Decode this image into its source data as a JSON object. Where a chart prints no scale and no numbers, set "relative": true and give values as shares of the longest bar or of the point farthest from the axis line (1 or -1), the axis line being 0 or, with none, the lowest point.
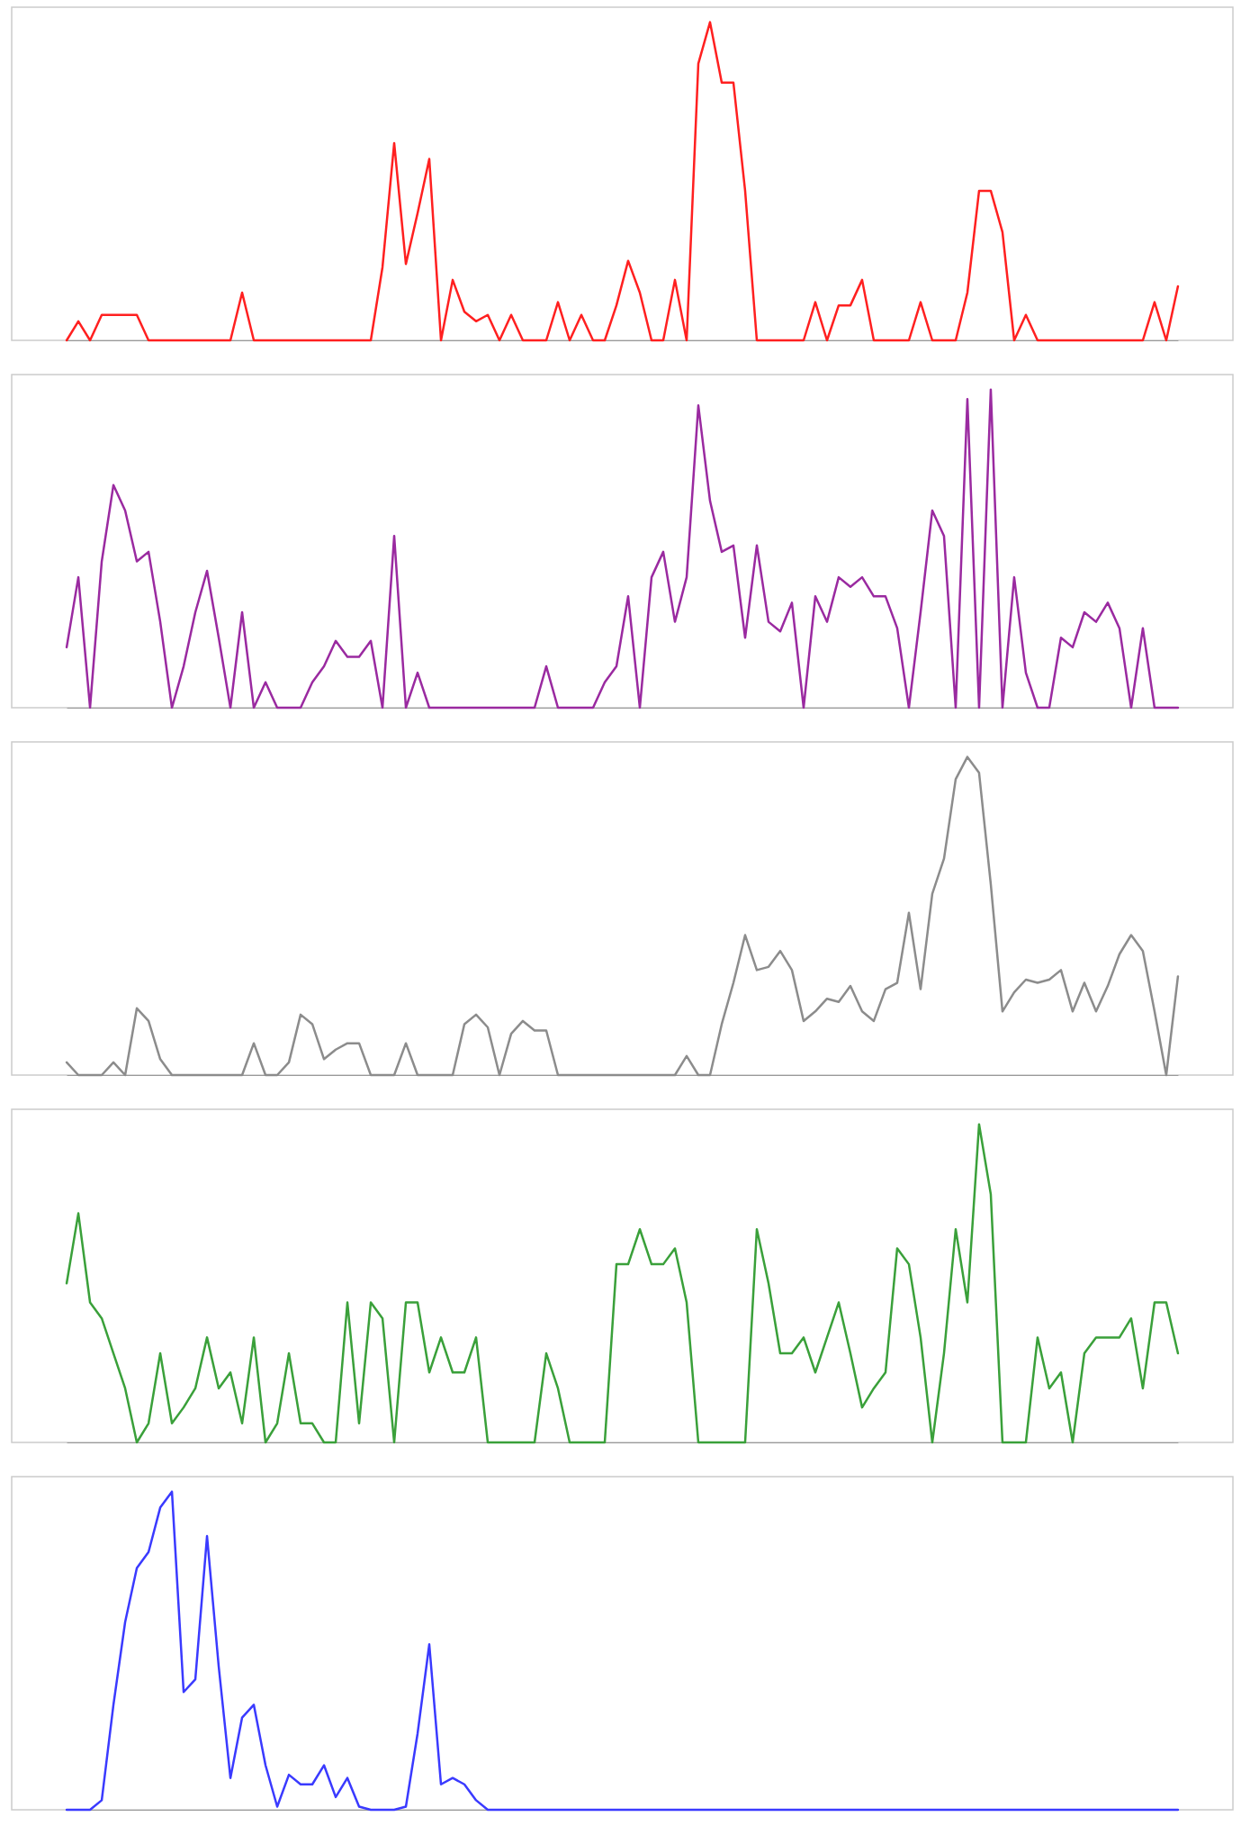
{
  "chart_data": [
    {
      "type": "line",
      "relative": true,
      "categories": [
        null,
        null,
        null,
        null,
        null,
        null,
        null,
        null,
        null,
        null,
        null,
        null,
        null,
        null,
        null,
        null,
        null,
        null,
        null,
        null,
        null,
        null,
        null,
        null,
        null,
        null,
        null,
        null,
        null,
        null,
        null,
        null,
        null,
        null,
        null,
        null,
        null,
        null,
        null,
        null,
        null,
        null,
        null,
        null,
        null,
        null,
        null,
        null,
        null,
        null,
        null,
        null,
        null,
        null,
        null,
        null,
        null,
        null,
        null,
        null,
        null,
        null,
        null,
        null,
        null,
        null,
        null,
        null,
        null,
        null,
        null,
        null,
        null,
        null,
        null,
        null,
        null,
        null,
        null,
        null,
        null,
        null,
        null,
        null,
        null,
        null,
        null,
        null,
        null,
        null,
        null,
        null,
        null,
        null,
        null,
        null
      ],
      "series": [
        {
          "color": "#ff2020",
          "values": [
            0,
            0.06,
            0,
            0.08,
            0.08,
            0.08,
            0.08,
            0,
            0,
            0,
            0,
            0,
            0,
            0,
            0,
            0.15,
            0,
            0,
            0,
            0,
            0,
            0,
            0,
            0,
            0,
            0,
            0,
            0.23,
            0.62,
            0.24,
            0.4,
            0.57,
            0,
            0.19,
            0.09,
            0.06,
            0.08,
            0,
            0.08,
            0,
            0,
            0,
            0.12,
            0,
            0.08,
            0,
            0,
            0.11,
            0.25,
            0.15,
            0,
            0,
            0.19,
            0,
            0.87,
            1,
            0.81,
            0.81,
            0.47,
            0,
            0,
            0,
            0,
            0,
            0.12,
            0,
            0.11,
            0.11,
            0.19,
            0,
            0,
            0,
            0,
            0.12,
            0,
            0,
            0,
            0.15,
            0.47,
            0.47,
            0.34,
            0,
            0.08,
            0,
            0,
            0,
            0,
            0,
            0,
            0,
            0,
            0,
            0,
            0.12,
            0,
            0.17
          ]
        }
      ]
    },
    {
      "type": "line",
      "relative": true,
      "categories": [
        null,
        null,
        null,
        null,
        null,
        null,
        null,
        null,
        null,
        null,
        null,
        null,
        null,
        null,
        null,
        null,
        null,
        null,
        null,
        null,
        null,
        null,
        null,
        null,
        null,
        null,
        null,
        null,
        null,
        null,
        null,
        null,
        null,
        null,
        null,
        null,
        null,
        null,
        null,
        null,
        null,
        null,
        null,
        null,
        null,
        null,
        null,
        null,
        null,
        null,
        null,
        null,
        null,
        null,
        null,
        null,
        null,
        null,
        null,
        null,
        null,
        null,
        null,
        null,
        null,
        null,
        null,
        null,
        null,
        null,
        null,
        null,
        null,
        null,
        null,
        null,
        null,
        null,
        null,
        null,
        null,
        null,
        null,
        null,
        null,
        null,
        null,
        null,
        null,
        null,
        null,
        null,
        null,
        null,
        null,
        null
      ],
      "series": [
        {
          "color": "#9a2aa0",
          "values": [
            0.19,
            0.41,
            0,
            0.46,
            0.7,
            0.62,
            0.46,
            0.49,
            0.27,
            0,
            0.13,
            0.3,
            0.43,
            0.22,
            0,
            0.3,
            0,
            0.08,
            0,
            0,
            0,
            0.08,
            0.13,
            0.21,
            0.16,
            0.16,
            0.21,
            0,
            0.54,
            0,
            0.11,
            0,
            0,
            0,
            0,
            0,
            0,
            0,
            0,
            0,
            0,
            0.13,
            0,
            0,
            0,
            0,
            0.08,
            0.13,
            0.35,
            0,
            0.41,
            0.49,
            0.27,
            0.41,
            0.95,
            0.65,
            0.49,
            0.51,
            0.22,
            0.51,
            0.27,
            0.24,
            0.33,
            0,
            0.35,
            0.27,
            0.41,
            0.38,
            0.41,
            0.35,
            0.35,
            0.25,
            0,
            0.3,
            0.62,
            0.54,
            0,
            0.97,
            0,
            1,
            0,
            0.41,
            0.11,
            0,
            0,
            0.22,
            0.19,
            0.3,
            0.27,
            0.33,
            0.25,
            0,
            0.25,
            0,
            0,
            0
          ]
        }
      ]
    },
    {
      "type": "line",
      "relative": true,
      "categories": [
        null,
        null,
        null,
        null,
        null,
        null,
        null,
        null,
        null,
        null,
        null,
        null,
        null,
        null,
        null,
        null,
        null,
        null,
        null,
        null,
        null,
        null,
        null,
        null,
        null,
        null,
        null,
        null,
        null,
        null,
        null,
        null,
        null,
        null,
        null,
        null,
        null,
        null,
        null,
        null,
        null,
        null,
        null,
        null,
        null,
        null,
        null,
        null,
        null,
        null,
        null,
        null,
        null,
        null,
        null,
        null,
        null,
        null,
        null,
        null,
        null,
        null,
        null,
        null,
        null,
        null,
        null,
        null,
        null,
        null,
        null,
        null,
        null,
        null,
        null,
        null,
        null,
        null,
        null,
        null,
        null,
        null,
        null,
        null,
        null,
        null,
        null,
        null,
        null,
        null,
        null,
        null,
        null,
        null,
        null,
        null
      ],
      "series": [
        {
          "color": "#8c8c8c",
          "values": [
            0.04,
            0,
            0,
            0,
            0.04,
            0,
            0.21,
            0.17,
            0.05,
            0,
            0,
            0,
            0,
            0,
            0,
            0,
            0.1,
            0,
            0,
            0.04,
            0.19,
            0.16,
            0.05,
            0.08,
            0.1,
            0.1,
            0,
            0,
            0,
            0.1,
            0,
            0,
            0,
            0,
            0.16,
            0.19,
            0.15,
            0,
            0.13,
            0.17,
            0.14,
            0.14,
            0,
            0,
            0,
            0,
            0,
            0,
            0,
            0,
            0,
            0,
            0,
            0.06,
            0,
            0,
            0.16,
            0.29,
            0.44,
            0.33,
            0.34,
            0.39,
            0.33,
            0.17,
            0.2,
            0.24,
            0.23,
            0.28,
            0.2,
            0.17,
            0.27,
            0.29,
            0.51,
            0.27,
            0.57,
            0.68,
            0.93,
            1,
            0.95,
            0.6,
            0.2,
            0.26,
            0.3,
            0.29,
            0.3,
            0.33,
            0.2,
            0.29,
            0.2,
            0.28,
            0.38,
            0.44,
            0.39,
            0.2,
            0,
            0.31
          ]
        }
      ]
    },
    {
      "type": "line",
      "relative": true,
      "categories": [
        null,
        null,
        null,
        null,
        null,
        null,
        null,
        null,
        null,
        null,
        null,
        null,
        null,
        null,
        null,
        null,
        null,
        null,
        null,
        null,
        null,
        null,
        null,
        null,
        null,
        null,
        null,
        null,
        null,
        null,
        null,
        null,
        null,
        null,
        null,
        null,
        null,
        null,
        null,
        null,
        null,
        null,
        null,
        null,
        null,
        null,
        null,
        null,
        null,
        null,
        null,
        null,
        null,
        null,
        null,
        null,
        null,
        null,
        null,
        null,
        null,
        null,
        null,
        null,
        null,
        null,
        null,
        null,
        null,
        null,
        null,
        null,
        null,
        null,
        null,
        null,
        null,
        null,
        null,
        null,
        null,
        null,
        null,
        null,
        null,
        null,
        null,
        null,
        null,
        null,
        null,
        null,
        null,
        null,
        null,
        null
      ],
      "series": [
        {
          "color": "#3aa03a",
          "values": [
            0.5,
            0.72,
            0.44,
            0.39,
            0.28,
            0.17,
            0,
            0.06,
            0.28,
            0.06,
            0.11,
            0.17,
            0.33,
            0.17,
            0.22,
            0.06,
            0.33,
            0,
            0.06,
            0.28,
            0.06,
            0.06,
            0,
            0,
            0.44,
            0.06,
            0.44,
            0.39,
            0,
            0.44,
            0.44,
            0.22,
            0.33,
            0.22,
            0.22,
            0.33,
            0,
            0,
            0,
            0,
            0,
            0.28,
            0.17,
            0,
            0,
            0,
            0,
            0.56,
            0.56,
            0.67,
            0.56,
            0.56,
            0.61,
            0.44,
            0,
            0,
            0,
            0,
            0,
            0.67,
            0.5,
            0.28,
            0.28,
            0.33,
            0.22,
            0.33,
            0.44,
            0.28,
            0.11,
            0.17,
            0.22,
            0.61,
            0.56,
            0.33,
            0,
            0.28,
            0.67,
            0.44,
            1,
            0.78,
            0,
            0,
            0,
            0.33,
            0.17,
            0.22,
            0,
            0.28,
            0.33,
            0.33,
            0.33,
            0.39,
            0.17,
            0.44,
            0.44,
            0.28
          ]
        }
      ]
    },
    {
      "type": "line",
      "relative": true,
      "categories": [
        null,
        null,
        null,
        null,
        null,
        null,
        null,
        null,
        null,
        null,
        null,
        null,
        null,
        null,
        null,
        null,
        null,
        null,
        null,
        null,
        null,
        null,
        null,
        null,
        null,
        null,
        null,
        null,
        null,
        null,
        null,
        null,
        null,
        null,
        null,
        null,
        null,
        null,
        null,
        null,
        null,
        null,
        null,
        null,
        null,
        null,
        null,
        null,
        null,
        null,
        null,
        null,
        null,
        null,
        null,
        null,
        null,
        null,
        null,
        null,
        null,
        null,
        null,
        null,
        null,
        null,
        null,
        null,
        null,
        null,
        null,
        null,
        null,
        null,
        null,
        null,
        null,
        null,
        null,
        null,
        null,
        null,
        null,
        null,
        null,
        null,
        null,
        null,
        null,
        null,
        null,
        null,
        null,
        null,
        null,
        null
      ],
      "series": [
        {
          "color": "#3a3aff",
          "values": [
            0,
            0,
            0,
            0.03,
            0.33,
            0.59,
            0.76,
            0.81,
            0.95,
            1,
            0.37,
            0.41,
            0.86,
            0.45,
            0.1,
            0.29,
            0.33,
            0.14,
            0.01,
            0.11,
            0.08,
            0.08,
            0.14,
            0.04,
            0.1,
            0.01,
            0,
            0,
            0,
            0.01,
            0.24,
            0.52,
            0.08,
            0.1,
            0.08,
            0.03,
            0,
            0,
            0,
            0,
            0,
            0,
            0,
            0,
            0,
            0,
            0,
            0,
            0,
            0,
            0,
            0,
            0,
            0,
            0,
            0,
            0,
            0,
            0,
            0,
            0,
            0,
            0,
            0,
            0,
            0,
            0,
            0,
            0,
            0,
            0,
            0,
            0,
            0,
            0,
            0,
            0,
            0,
            0,
            0,
            0,
            0,
            0,
            0,
            0,
            0,
            0,
            0,
            0,
            0,
            0,
            0,
            0,
            0,
            0,
            0
          ]
        }
      ]
    }
  ]
}
